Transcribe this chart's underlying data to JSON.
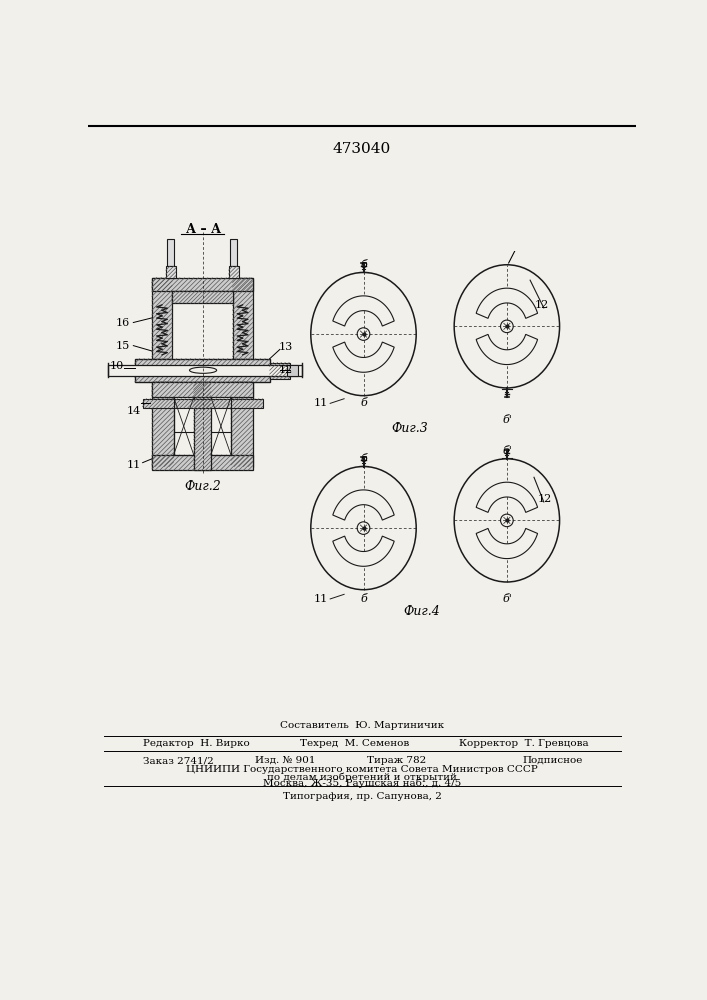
{
  "patent_number": "473040",
  "bg_color": "#f2f0eb",
  "lc": "#1a1a1a",
  "hatch_color": "#555555",
  "fig2_label": "Фиг.2",
  "fig3_label": "Фиг.3",
  "fig4_label": "Фиг.4",
  "aa_label": "А – А",
  "footer": {
    "sostavitel": "Составитель  Ю. Мартиничик",
    "redaktor": "Редактор  Н. Вирко",
    "tehred": "Техред  М. Семенов",
    "korrektor": "Корректор  Т. Гревцова",
    "zakaz": "Заказ 2741/2",
    "izd": "Изд. № 901",
    "tirazh": "Тираж 782",
    "podpisnoe": "Подписное",
    "cniipи": "ЦНИИПИ Государственного комитета Совета Министров СССР",
    "po_delam": "по делам изобретений и открытий",
    "moskva": "Москва, Ж-35, Раушская наб., д. 4/5",
    "tipografia": "Типография, пр. Сапунова, 2"
  }
}
